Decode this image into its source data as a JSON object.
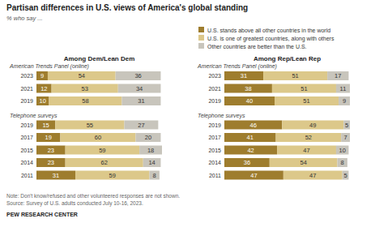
{
  "title": "Partisan differences in U.S. views of America's global standing",
  "subtitle": "% who say ...",
  "note": "Note: Don't know/refused and other volunteered responses are not shown.",
  "source": "Source: Survey of U.S. adults conducted July 10-16, 2023.",
  "credit": "PEW RESEARCH CENTER",
  "chart_data": [
    {
      "type": "bar",
      "title": "Among Dem/Lean Dem",
      "orientation": "horizontal",
      "stacked": true,
      "data_labels": true,
      "grid": false,
      "legend": "top",
      "tick_labels": "y",
      "xlim": [
        0,
        100
      ],
      "categories": [
        "2023",
        "2021",
        "2019",
        "2019",
        "2017",
        "2015",
        "2014",
        "2011"
      ],
      "category_groups": [
        {
          "label": "American Trends Panel (online)",
          "count": 3
        },
        {
          "label": "Telephone surveys",
          "count": 5
        }
      ],
      "series": [
        {
          "name": "U.S. stands above all other countries in the world",
          "color": "#9e7d2e",
          "values": [
            9,
            12,
            10,
            15,
            19,
            23,
            23,
            31
          ]
        },
        {
          "name": "U.S. is one of greatest countries, along with others",
          "color": "#dcc88a",
          "values": [
            54,
            53,
            58,
            55,
            60,
            59,
            62,
            59
          ]
        },
        {
          "name": "Other countries are better than the U.S.",
          "color": "#c8c5bc",
          "values": [
            36,
            34,
            31,
            27,
            20,
            18,
            14,
            8
          ]
        }
      ]
    },
    {
      "type": "bar",
      "title": "Among Rep/Lean Rep",
      "orientation": "horizontal",
      "stacked": true,
      "data_labels": true,
      "grid": false,
      "tick_labels": "y",
      "xlim": [
        0,
        100
      ],
      "categories": [
        "2023",
        "2021",
        "2019",
        "2019",
        "2017",
        "2015",
        "2014",
        "2011"
      ],
      "category_groups": [
        {
          "label": "American Trends Panel (online)",
          "count": 3
        },
        {
          "label": "Telephone surveys",
          "count": 5
        }
      ],
      "series": [
        {
          "color": "#9e7d2e",
          "values": [
            31,
            38,
            40,
            46,
            41,
            42,
            36,
            47
          ]
        },
        {
          "color": "#dcc88a",
          "values": [
            51,
            51,
            51,
            49,
            52,
            47,
            54,
            47
          ]
        },
        {
          "color": "#c8c5bc",
          "values": [
            17,
            11,
            9,
            5,
            7,
            10,
            8,
            5
          ]
        }
      ]
    }
  ]
}
